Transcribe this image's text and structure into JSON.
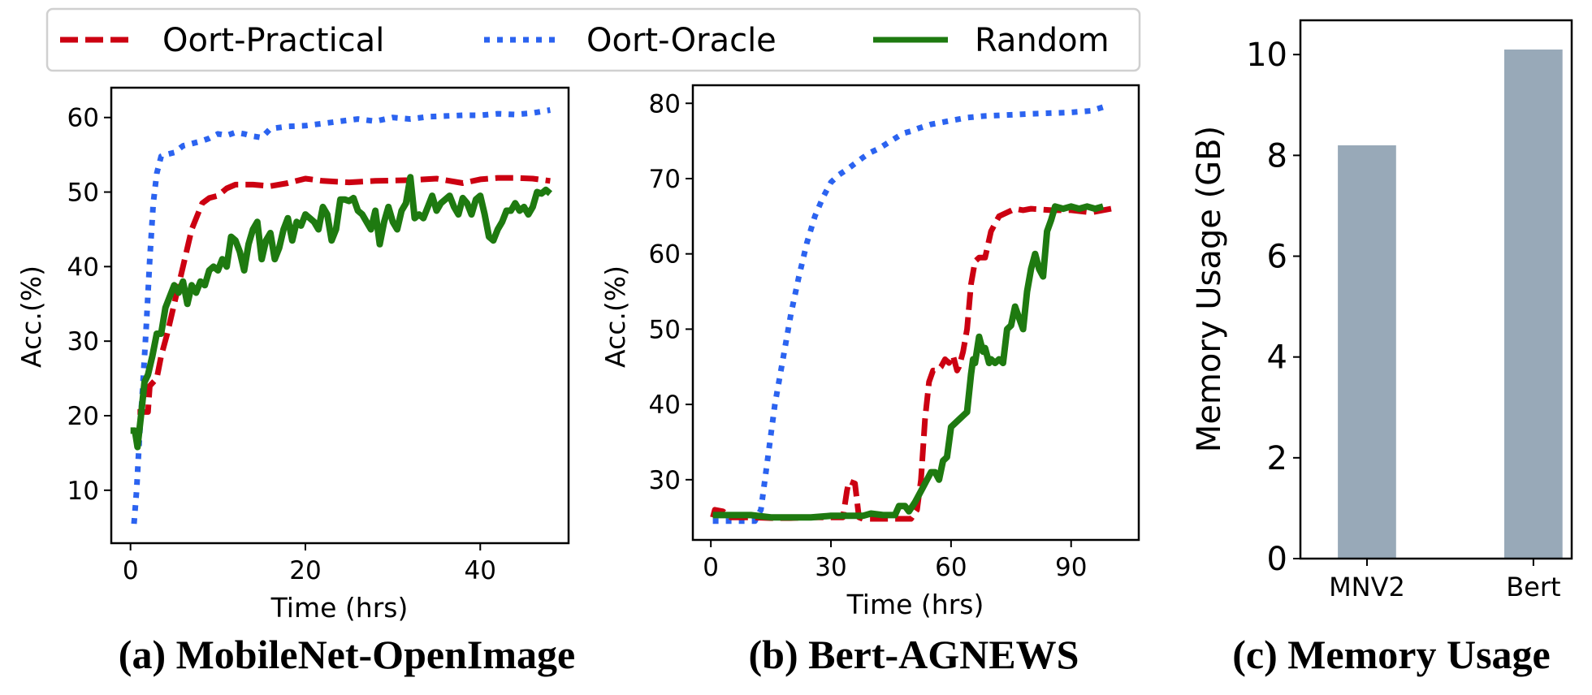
{
  "legend": {
    "items": [
      {
        "label": "Oort-Practical",
        "color": "#cc0011",
        "style": "dashed"
      },
      {
        "label": "Oort-Oracle",
        "color": "#2b63f0",
        "style": "dotted"
      },
      {
        "label": "Random",
        "color": "#1e7a10",
        "style": "solid"
      }
    ]
  },
  "captions": {
    "a": "(a) MobileNet-OpenImage",
    "b": "(b) Bert-AGNEWS",
    "c": "(c) Memory Usage"
  },
  "chart_data": [
    {
      "id": "a",
      "type": "line",
      "title": "(a) MobileNet-OpenImage",
      "xlabel": "Time (hrs)",
      "ylabel": "Acc.(%)",
      "xlim": [
        -2.2,
        50.1
      ],
      "ylim": [
        2.9,
        64.0
      ],
      "xticks": [
        0,
        20,
        40
      ],
      "yticks": [
        10,
        20,
        30,
        40,
        50,
        60
      ],
      "grid": false,
      "series": [
        {
          "name": "Oort-Practical",
          "color": "#cc0011",
          "style": "dashed",
          "x": [
            0.8,
            2.0,
            2.2,
            3.0,
            3.5,
            4.2,
            5.0,
            6.0,
            7.0,
            8.2,
            9.0,
            10.0,
            11.0,
            12.0,
            14.0,
            16.0,
            18.0,
            20.0,
            22.0,
            25.0,
            28.0,
            32.0,
            35.0,
            38.0,
            40.0,
            42.0,
            44.0,
            46.0,
            48.0
          ],
          "y": [
            20.5,
            20.5,
            24.0,
            25.0,
            28.0,
            31.0,
            35.0,
            40.0,
            45.0,
            48.5,
            49.2,
            49.5,
            50.5,
            51.0,
            51.0,
            50.8,
            51.2,
            51.8,
            51.5,
            51.3,
            51.5,
            51.6,
            51.8,
            51.2,
            51.7,
            51.9,
            51.9,
            51.8,
            51.5
          ]
        },
        {
          "name": "Oort-Oracle",
          "color": "#2b63f0",
          "style": "dotted",
          "x": [
            0.4,
            0.7,
            1.0,
            1.4,
            1.8,
            2.2,
            2.6,
            3.0,
            3.5,
            4.0,
            5.0,
            6.0,
            7.0,
            8.0,
            9.0,
            10.0,
            11.0,
            12.0,
            13.0,
            14.0,
            15.0,
            16.0,
            18.0,
            20.0,
            22.0,
            24.0,
            26.0,
            28.0,
            30.0,
            32.0,
            34.0,
            36.0,
            38.0,
            40.0,
            42.0,
            44.0,
            46.0,
            48.0
          ],
          "y": [
            5.5,
            10.0,
            16.5,
            24.0,
            32.0,
            41.0,
            48.5,
            52.5,
            54.8,
            55.0,
            55.3,
            56.2,
            56.5,
            56.8,
            57.2,
            57.8,
            57.6,
            58.0,
            57.8,
            57.5,
            57.3,
            58.5,
            58.8,
            58.9,
            59.2,
            59.5,
            59.8,
            59.5,
            60.0,
            59.8,
            60.1,
            60.2,
            60.3,
            60.3,
            60.5,
            60.4,
            60.6,
            61.0
          ]
        },
        {
          "name": "Random",
          "color": "#1e7a10",
          "style": "solid",
          "x": [
            0.0,
            0.5,
            0.8,
            1.2,
            1.6,
            2.0,
            2.5,
            3.0,
            3.5,
            4.0,
            4.5,
            5.0,
            5.5,
            6.0,
            6.5,
            7.0,
            7.5,
            8.0,
            8.5,
            9.0,
            9.5,
            10.0,
            10.5,
            11.0,
            11.5,
            12.0,
            12.5,
            13.0,
            13.5,
            14.0,
            14.5,
            15.0,
            15.5,
            16.0,
            16.5,
            17.0,
            17.5,
            18.0,
            18.5,
            19.0,
            19.5,
            20.0,
            20.5,
            21.0,
            21.5,
            22.0,
            22.5,
            23.0,
            23.5,
            24.0,
            24.5,
            25.0,
            25.5,
            26.0,
            26.5,
            27.0,
            27.5,
            28.0,
            28.5,
            29.0,
            29.5,
            30.0,
            30.5,
            31.0,
            31.5,
            32.0,
            32.5,
            33.0,
            33.5,
            34.0,
            34.5,
            35.0,
            35.5,
            36.0,
            36.5,
            37.0,
            37.5,
            38.0,
            38.5,
            39.0,
            39.5,
            40.0,
            40.5,
            41.0,
            41.5,
            42.0,
            42.5,
            43.0,
            43.5,
            44.0,
            44.5,
            45.0,
            45.5,
            46.0,
            46.5,
            47.0,
            47.5,
            48.0
          ],
          "y": [
            18.0,
            18.0,
            15.8,
            20.0,
            24.5,
            25.5,
            28.0,
            31.0,
            31.0,
            34.5,
            36.0,
            37.5,
            36.5,
            38.0,
            35.0,
            37.5,
            36.5,
            38.0,
            37.5,
            39.5,
            40.0,
            39.5,
            41.0,
            40.0,
            44.0,
            43.5,
            42.0,
            39.5,
            43.0,
            45.0,
            46.0,
            41.0,
            43.5,
            44.5,
            41.0,
            42.5,
            45.0,
            46.5,
            43.5,
            46.0,
            45.5,
            47.0,
            46.5,
            46.0,
            45.0,
            48.0,
            47.0,
            43.5,
            45.0,
            49.0,
            49.0,
            48.8,
            49.2,
            47.5,
            47.0,
            46.0,
            45.0,
            47.5,
            43.0,
            46.0,
            48.0,
            46.0,
            45.0,
            47.5,
            48.5,
            52.0,
            46.5,
            47.0,
            46.5,
            48.0,
            49.5,
            47.5,
            48.5,
            49.0,
            49.5,
            48.0,
            47.0,
            49.2,
            48.5,
            47.0,
            49.0,
            49.5,
            47.0,
            44.0,
            43.5,
            45.0,
            46.0,
            47.5,
            47.5,
            48.5,
            47.5,
            48.0,
            47.0,
            48.0,
            50.0,
            49.8,
            50.3,
            49.8
          ]
        }
      ]
    },
    {
      "id": "b",
      "type": "line",
      "title": "(b) Bert-AGNEWS",
      "xlabel": "Time (hrs)",
      "ylabel": "Acc.(%)",
      "xlim": [
        -4.5,
        106.9
      ],
      "ylim": [
        22.0,
        82.4
      ],
      "xticks": [
        0,
        30,
        60,
        90
      ],
      "yticks": [
        30,
        40,
        50,
        60,
        70,
        80
      ],
      "grid": false,
      "series": [
        {
          "name": "Oort-Practical",
          "color": "#cc0011",
          "style": "dashed",
          "x": [
            0.5,
            1.0,
            3.0,
            5.0,
            10.0,
            15.0,
            20.0,
            25.0,
            30.0,
            33.0,
            34.0,
            34.5,
            36.0,
            37.0,
            38.0,
            40.0,
            45.0,
            48.0,
            50.0,
            51.5,
            52.5,
            53.5,
            54.5,
            55.5,
            56.5,
            57.5,
            58.5,
            59.5,
            60.5,
            61.5,
            62.0,
            63.0,
            64.0,
            65.0,
            66.0,
            67.0,
            68.5,
            70.0,
            72.0,
            74.0,
            76.0,
            78.0,
            80.0,
            85.0,
            90.0,
            95.0,
            100.0
          ],
          "y": [
            25.0,
            26.0,
            25.8,
            25.0,
            25.0,
            24.9,
            24.9,
            25.0,
            25.0,
            25.0,
            28.5,
            29.8,
            29.5,
            25.0,
            24.8,
            24.8,
            24.8,
            24.8,
            24.8,
            26.0,
            30.0,
            38.0,
            43.0,
            44.5,
            44.5,
            45.0,
            46.0,
            45.5,
            46.5,
            44.5,
            45.0,
            47.0,
            50.0,
            56.0,
            59.0,
            59.5,
            59.5,
            63.0,
            65.0,
            65.5,
            66.0,
            65.8,
            66.0,
            65.8,
            65.8,
            65.5,
            66.0
          ]
        },
        {
          "name": "Oort-Oracle",
          "color": "#2b63f0",
          "style": "dotted",
          "x": [
            0.5,
            3.0,
            6.0,
            9.0,
            11.0,
            12.5,
            14.0,
            16.0,
            18.0,
            20.0,
            22.0,
            24.0,
            26.0,
            28.0,
            30.0,
            32.0,
            34.0,
            36.0,
            38.0,
            40.0,
            42.0,
            45.0,
            48.0,
            50.0,
            52.0,
            55.0,
            58.0,
            61.0,
            64.0,
            68.0,
            72.0,
            76.0,
            80.0,
            85.0,
            90.0,
            95.0,
            98.0
          ],
          "y": [
            24.5,
            24.5,
            24.5,
            24.5,
            24.5,
            26.0,
            32.0,
            40.0,
            46.0,
            52.0,
            57.0,
            61.5,
            65.0,
            67.5,
            69.5,
            70.5,
            71.2,
            72.0,
            72.8,
            73.5,
            74.0,
            75.0,
            76.0,
            76.3,
            76.7,
            77.2,
            77.5,
            77.8,
            78.1,
            78.3,
            78.4,
            78.5,
            78.6,
            78.7,
            78.8,
            79.0,
            79.5
          ]
        },
        {
          "name": "Random",
          "color": "#1e7a10",
          "style": "solid",
          "x": [
            0.5,
            5.0,
            10.0,
            15.0,
            20.0,
            25.0,
            30.0,
            35.0,
            38.0,
            40.0,
            43.0,
            46.0,
            47.0,
            48.5,
            49.5,
            51.0,
            53.0,
            55.0,
            56.0,
            57.0,
            58.0,
            59.0,
            60.0,
            61.0,
            62.0,
            63.0,
            64.0,
            65.0,
            65.5,
            66.0,
            67.0,
            68.0,
            68.5,
            69.5,
            70.0,
            71.0,
            72.0,
            73.0,
            74.0,
            75.0,
            76.0,
            77.0,
            78.0,
            79.0,
            80.0,
            81.0,
            82.0,
            83.0,
            84.0,
            85.0,
            86.0,
            88.0,
            90.0,
            92.0,
            94.0,
            96.0,
            98.0
          ],
          "y": [
            25.3,
            25.3,
            25.3,
            25.0,
            25.0,
            25.0,
            25.2,
            25.2,
            25.2,
            25.5,
            25.3,
            25.3,
            26.5,
            26.5,
            25.8,
            27.0,
            29.0,
            31.0,
            31.0,
            30.0,
            32.5,
            33.0,
            37.0,
            37.5,
            38.0,
            38.5,
            39.0,
            44.0,
            46.0,
            45.5,
            49.0,
            47.0,
            47.5,
            45.5,
            46.0,
            45.5,
            46.0,
            45.5,
            50.0,
            50.5,
            53.0,
            51.5,
            50.0,
            55.0,
            58.0,
            60.0,
            58.0,
            57.0,
            63.0,
            64.5,
            66.3,
            66.0,
            66.3,
            66.0,
            66.3,
            66.0,
            66.3
          ]
        }
      ]
    },
    {
      "id": "c",
      "type": "bar",
      "title": "(c) Memory Usage",
      "xlabel": "",
      "ylabel": "Memory Usage (GB)",
      "categories": [
        "MNV2",
        "Bert"
      ],
      "values": [
        8.2,
        10.1
      ],
      "ylim": [
        0,
        10.68
      ],
      "yticks": [
        0,
        2,
        4,
        6,
        8,
        10
      ],
      "bar_color": "#98a9b8",
      "grid": false
    }
  ]
}
